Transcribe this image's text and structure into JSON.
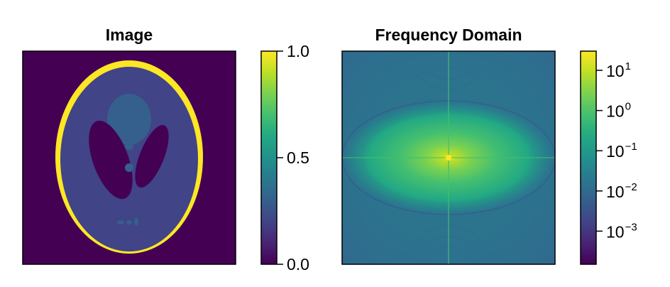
{
  "chart_data": [
    {
      "type": "heatmap",
      "title": "Image",
      "description_of_content": "",
      "xlabel": "",
      "ylabel": "",
      "colormap": "viridis",
      "colorbar": {
        "scale": "linear",
        "range": [
          0.0,
          1.0
        ],
        "ticks": [
          {
            "value": 0.0,
            "label": "0.0"
          },
          {
            "value": 0.5,
            "label": "0.5"
          },
          {
            "value": 1.0,
            "label": "1.0"
          }
        ]
      },
      "levels": {
        "background": 0.0,
        "skull_ring": 1.0,
        "brain": 0.2,
        "dark_ellipses": 0.0,
        "top_ellipse": 0.3,
        "small_spots": 0.3
      },
      "grid": false
    },
    {
      "type": "heatmap",
      "title": "Frequency Domain",
      "xlabel": "",
      "ylabel": "",
      "colormap": "viridis",
      "colorbar": {
        "scale": "log",
        "range": [
          0.00015,
          30
        ],
        "ticks": [
          {
            "value": 10,
            "base": "10",
            "exp": "1"
          },
          {
            "value": 1,
            "base": "10",
            "exp": "0"
          },
          {
            "value": 0.1,
            "base": "10",
            "exp": "−1"
          },
          {
            "value": 0.01,
            "base": "10",
            "exp": "−2"
          },
          {
            "value": 0.001,
            "base": "10",
            "exp": "−3"
          }
        ]
      },
      "grid": false
    }
  ]
}
